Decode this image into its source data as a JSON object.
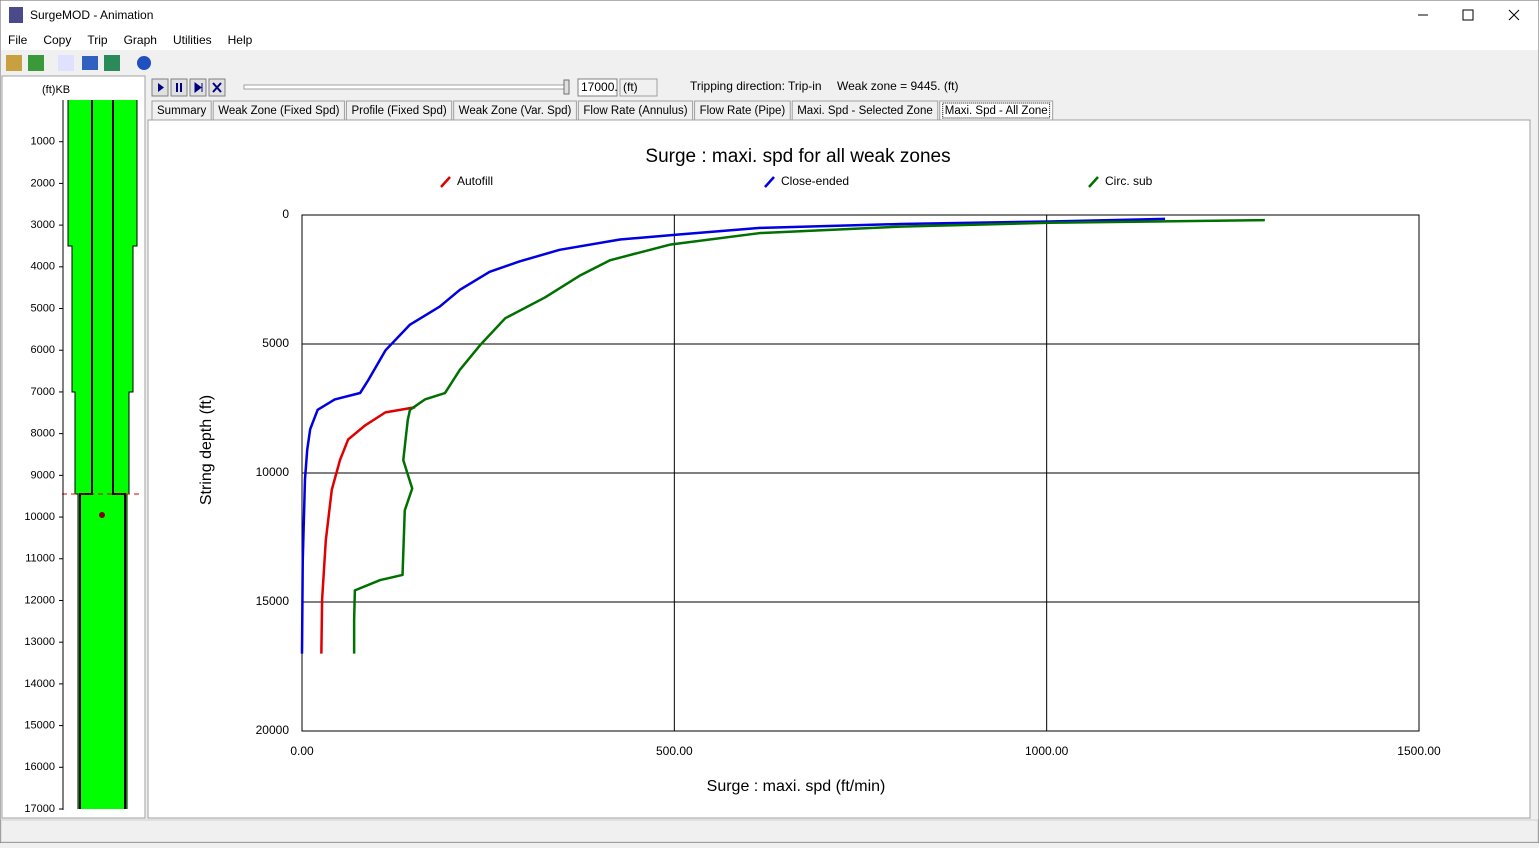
{
  "window": {
    "title": "SurgeMOD - Animation"
  },
  "menu": [
    "File",
    "Copy",
    "Trip",
    "Graph",
    "Utilities",
    "Help"
  ],
  "controls": {
    "depth": "17000.",
    "unit": "(ft)",
    "tripping": "Tripping direction: Trip-in",
    "weak_zone": "Weak zone = 9445. (ft)"
  },
  "tabs": [
    "Summary",
    "Weak Zone (Fixed Spd)",
    "Profile (Fixed Spd)",
    "Weak Zone (Var. Spd)",
    "Flow Rate (Annulus)",
    "Flow Rate (Pipe)",
    "Maxi. Spd - Selected Zone",
    "Maxi. Spd - All Zone"
  ],
  "active_tab": 7,
  "depth_scale": {
    "label": "(ft)KB",
    "lim": [
      0,
      17000
    ],
    "ticks": [
      1000,
      2000,
      3000,
      4000,
      5000,
      6000,
      7000,
      8000,
      9000,
      10000,
      11000,
      12000,
      13000,
      14000,
      15000,
      16000,
      17000
    ]
  },
  "chart_data": {
    "type": "line",
    "title": "Surge : maxi. spd for all weak zones",
    "x_label": "Surge : maxi. spd (ft/min)",
    "y_label": "String depth (ft)",
    "xlim": [
      0,
      1500
    ],
    "xticks": [
      {
        "value": 0,
        "label": "0.00"
      },
      {
        "value": 500,
        "label": "500.00"
      },
      {
        "value": 1000,
        "label": "1000.00"
      },
      {
        "value": 1500,
        "label": "1500.00"
      }
    ],
    "ylim": [
      0,
      20000
    ],
    "y_inverted": true,
    "yticks": [
      0,
      5000,
      10000,
      15000,
      20000
    ],
    "grid": true,
    "series": [
      {
        "name": "Autofill",
        "color": "#e00000",
        "x": [
          26,
          27,
          32,
          40,
          51,
          62,
          85,
          112,
          152
        ],
        "values": [
          17000,
          14900,
          12600,
          10650,
          9500,
          8700,
          8150,
          7650,
          7450
        ]
      },
      {
        "name": "Close-ended",
        "color": "#0000e0",
        "x": [
          0,
          1,
          4,
          7,
          11,
          21,
          44,
          78,
          89,
          112,
          145,
          185,
          212,
          252,
          292,
          346,
          427,
          508,
          615,
          803,
          1004,
          1159
        ],
        "values": [
          17000,
          13400,
          10250,
          9100,
          8300,
          7550,
          7150,
          6900,
          6400,
          5250,
          4250,
          3550,
          2900,
          2200,
          1800,
          1350,
          950,
          750,
          500,
          350,
          250,
          150
        ]
      },
      {
        "name": "Circ. sub",
        "color": "#007000",
        "x": [
          70,
          70,
          71,
          105,
          135,
          138,
          148,
          136,
          142,
          145,
          165,
          192,
          212,
          239,
          273,
          326,
          373,
          414,
          494,
          615,
          803,
          1004,
          1293
        ],
        "values": [
          17000,
          15700,
          14550,
          14150,
          13950,
          11450,
          10600,
          9500,
          7950,
          7550,
          7150,
          6900,
          6000,
          5050,
          4000,
          3200,
          2350,
          1750,
          1150,
          700,
          450,
          300,
          200
        ]
      }
    ]
  }
}
